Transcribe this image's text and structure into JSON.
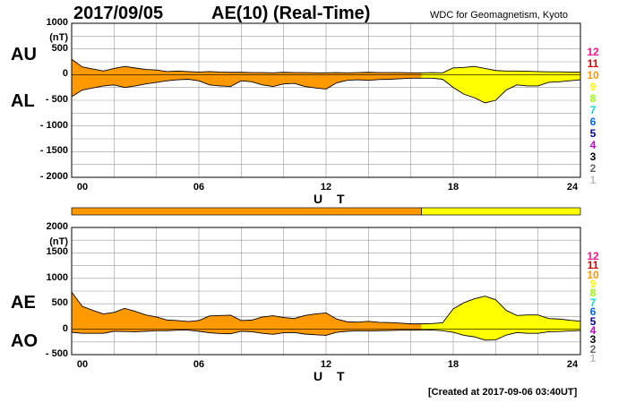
{
  "header": {
    "date": "2017/09/05",
    "title": "AE(10) (Real-Time)",
    "source": "WDC for Geomagnetism, Kyoto"
  },
  "footer": {
    "created": "[Created at 2017-09-06 03:40UT]"
  },
  "colors": {
    "orange": "#FF9900",
    "yellow": "#FFFF00",
    "line": "#000000",
    "grid": "#999999"
  },
  "legend": {
    "levels": [
      "12",
      "11",
      "10",
      "9",
      "8",
      "7",
      "6",
      "5",
      "4",
      "3",
      "2",
      "1"
    ],
    "colors": [
      "#FF1493",
      "#DD0000",
      "#FF9900",
      "#FFFF00",
      "#99FF00",
      "#00E0E0",
      "#0066FF",
      "#000099",
      "#CC00CC",
      "#000000",
      "#666666",
      "#BBBBBB"
    ]
  },
  "chart_data": [
    {
      "type": "area",
      "left_labels": [
        "AU",
        "AL"
      ],
      "ylabel_unit": "(nT)",
      "ylim": [
        -2000,
        1000
      ],
      "yticks": [
        1000,
        500,
        0,
        -500,
        -1000,
        -1500,
        -2000
      ],
      "xlim": [
        0,
        24
      ],
      "xticks": [
        "00",
        "06",
        "12",
        "18",
        "24"
      ],
      "xlabel": "U T",
      "x": [
        0,
        0.5,
        1,
        1.5,
        2,
        2.5,
        3,
        3.5,
        4,
        4.5,
        5,
        5.5,
        6,
        6.5,
        7,
        7.5,
        8,
        8.5,
        9,
        9.5,
        10,
        10.5,
        11,
        11.5,
        12,
        12.5,
        13,
        13.5,
        14,
        14.5,
        15,
        15.5,
        16,
        16.5,
        17,
        17.5,
        18,
        18.5,
        19,
        19.5,
        20,
        20.5,
        21,
        21.5,
        22,
        22.5,
        23,
        23.5,
        24
      ],
      "series": [
        {
          "values": [
            300,
            150,
            110,
            70,
            120,
            160,
            130,
            100,
            90,
            60,
            70,
            60,
            50,
            60,
            50,
            45,
            45,
            40,
            40,
            35,
            45,
            40,
            40,
            35,
            35,
            40,
            35,
            40,
            45,
            40,
            40,
            40,
            35,
            35,
            40,
            35,
            130,
            140,
            160,
            120,
            80,
            70,
            70,
            65,
            60,
            55,
            55,
            50,
            50
          ]
        },
        {
          "values": [
            -430,
            -300,
            -260,
            -220,
            -200,
            -250,
            -220,
            -180,
            -150,
            -120,
            -100,
            -90,
            -120,
            -200,
            -220,
            -230,
            -120,
            -140,
            -200,
            -230,
            -180,
            -170,
            -230,
            -260,
            -280,
            -160,
            -110,
            -100,
            -110,
            -95,
            -90,
            -80,
            -70,
            -70,
            -70,
            -90,
            -250,
            -380,
            -450,
            -550,
            -500,
            -300,
            -200,
            -220,
            -220,
            -150,
            -140,
            -120,
            -100
          ]
        }
      ]
    },
    {
      "type": "area",
      "left_labels": [
        "AE",
        "AO"
      ],
      "ylabel_unit": "(nT)",
      "ylim": [
        -500,
        2000
      ],
      "yticks": [
        2000,
        1500,
        1000,
        500,
        0,
        -500
      ],
      "xlim": [
        0,
        24
      ],
      "xticks": [
        "00",
        "06",
        "12",
        "18",
        "24"
      ],
      "xlabel": "U T",
      "x": [
        0,
        0.5,
        1,
        1.5,
        2,
        2.5,
        3,
        3.5,
        4,
        4.5,
        5,
        5.5,
        6,
        6.5,
        7,
        7.5,
        8,
        8.5,
        9,
        9.5,
        10,
        10.5,
        11,
        11.5,
        12,
        12.5,
        13,
        13.5,
        14,
        14.5,
        15,
        15.5,
        16,
        16.5,
        17,
        17.5,
        18,
        18.5,
        19,
        19.5,
        20,
        20.5,
        21,
        21.5,
        22,
        22.5,
        23,
        23.5,
        24
      ],
      "series": [
        {
          "values": [
            730,
            450,
            370,
            300,
            330,
            410,
            350,
            280,
            240,
            180,
            170,
            150,
            170,
            260,
            270,
            275,
            170,
            180,
            240,
            265,
            230,
            210,
            270,
            300,
            320,
            200,
            145,
            140,
            155,
            135,
            130,
            120,
            105,
            105,
            110,
            125,
            400,
            520,
            600,
            650,
            580,
            370,
            270,
            280,
            280,
            210,
            200,
            175,
            160
          ]
        },
        {
          "values": [
            -60,
            -80,
            -80,
            -80,
            -40,
            -45,
            -50,
            -40,
            -30,
            -30,
            -20,
            -20,
            -40,
            -70,
            -85,
            -90,
            -40,
            -50,
            -80,
            -100,
            -70,
            -65,
            -95,
            -110,
            -120,
            -60,
            -40,
            -30,
            -35,
            -30,
            -25,
            -20,
            -20,
            -20,
            -15,
            -30,
            -60,
            -120,
            -150,
            -215,
            -210,
            -115,
            -65,
            -80,
            -80,
            -50,
            -45,
            -35,
            -25
          ]
        }
      ]
    }
  ],
  "bar_segments": [
    {
      "start": 0,
      "end": 16.5,
      "level": "10"
    },
    {
      "start": 16.5,
      "end": 24,
      "level": "9"
    }
  ]
}
